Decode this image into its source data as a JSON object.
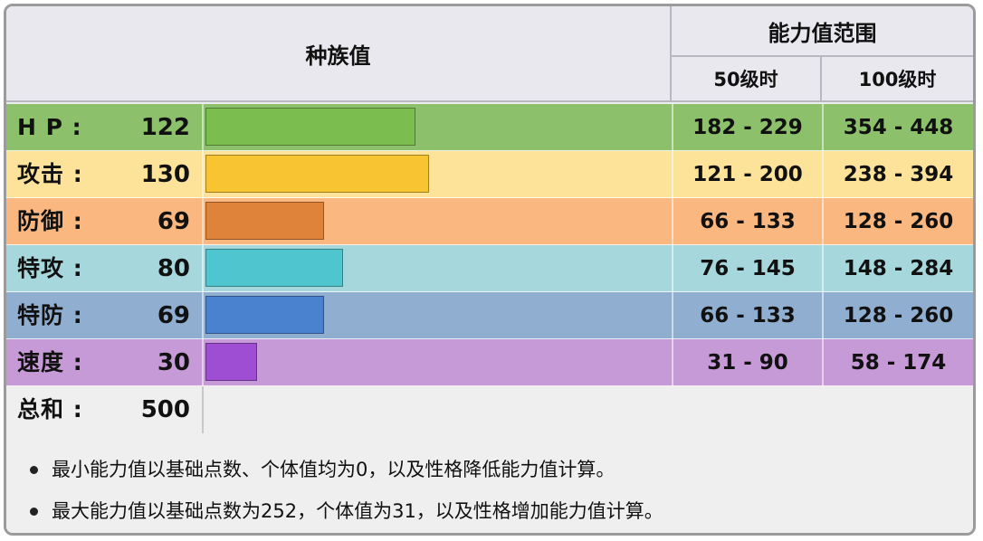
{
  "header": {
    "base_stats_label": "种族值",
    "stat_range_label": "能力值范围",
    "lv50_label": "50级时",
    "lv100_label": "100级时"
  },
  "stats": [
    {
      "label": "H P :",
      "value": "122",
      "base": 122,
      "range50": "182 - 229",
      "range100": "354 - 448",
      "row_color": "#8cc06a",
      "bar_color": "#7bbe4f"
    },
    {
      "label": "攻击 :",
      "value": "130",
      "base": 130,
      "range50": "121 - 200",
      "range100": "238 - 394",
      "row_color": "#fde39a",
      "bar_color": "#f8c432"
    },
    {
      "label": "防御 :",
      "value": "69",
      "base": 69,
      "range50": "66 - 133",
      "range100": "128 - 260",
      "row_color": "#fbb780",
      "bar_color": "#e0833a"
    },
    {
      "label": "特攻 :",
      "value": "80",
      "base": 80,
      "range50": "76 - 145",
      "range100": "148 - 284",
      "row_color": "#a6d7dc",
      "bar_color": "#4fc5cf"
    },
    {
      "label": "特防 :",
      "value": "69",
      "base": 69,
      "range50": "66 - 133",
      "range100": "128 - 260",
      "row_color": "#90aed0",
      "bar_color": "#4a82d0"
    },
    {
      "label": "速度 :",
      "value": "30",
      "base": 30,
      "range50": "31 - 90",
      "range100": "58 - 174",
      "row_color": "#c69ad6",
      "bar_color": "#9d4ed2"
    }
  ],
  "total": {
    "label": "总和 :",
    "value": "500"
  },
  "notes": [
    "最小能力值以基础点数、个体值均为0，以及性格降低能力值计算。",
    "最大能力值以基础点数为252，个体值为31，以及性格增加能力值计算。"
  ]
}
